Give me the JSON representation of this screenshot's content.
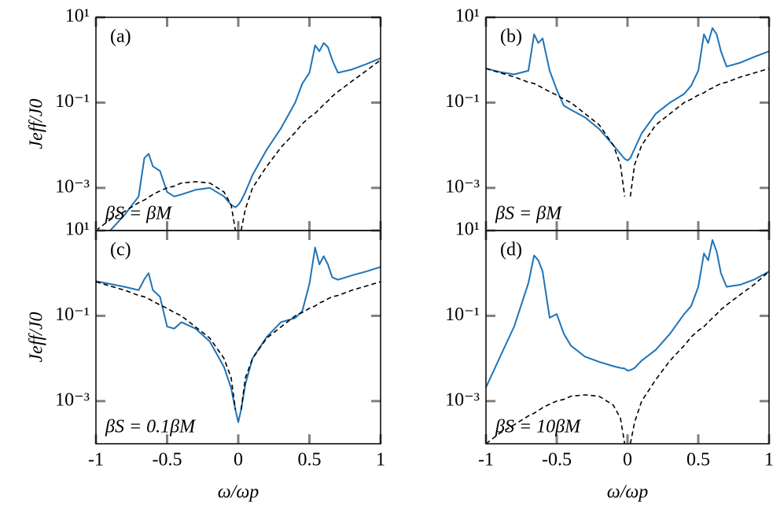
{
  "chart_data": [
    {
      "type": "line",
      "panel": "(a)",
      "annotation": "βS = βM",
      "ylabel": "Jeff/J0",
      "yscale": "log",
      "xlim": [
        -1,
        1
      ],
      "xticks": [
        -1,
        -0.5,
        0,
        0.5,
        1
      ],
      "ylim": [
        0.0001,
        10
      ],
      "yticks": [
        {
          "value": 10,
          "label": "10¹"
        },
        {
          "value": 0.1,
          "label": "10⁻¹"
        },
        {
          "value": 0.001,
          "label": "10⁻³"
        }
      ],
      "x": [
        -1,
        -0.9,
        -0.8,
        -0.7,
        -0.66,
        -0.63,
        -0.6,
        -0.55,
        -0.5,
        -0.45,
        -0.4,
        -0.3,
        -0.2,
        -0.1,
        -0.05,
        -0.02,
        0,
        0.02,
        0.05,
        0.1,
        0.2,
        0.3,
        0.4,
        0.45,
        0.5,
        0.54,
        0.57,
        0.6,
        0.63,
        0.66,
        0.7,
        0.8,
        0.9,
        1
      ],
      "series": [
        {
          "color": "#1f74b7",
          "dashed": false,
          "values": [
            null,
            0.0001,
            0.00023,
            0.00063,
            0.005,
            0.0063,
            0.0032,
            0.0025,
            0.0008,
            0.00063,
            0.0007,
            0.0009,
            0.001,
            0.00063,
            0.0004,
            0.00035,
            0.0004,
            0.0005,
            0.0008,
            0.002,
            0.0079,
            0.025,
            0.1,
            0.28,
            0.5,
            2.2,
            1.6,
            2.5,
            2,
            1,
            0.5,
            0.6,
            0.8,
            1.1
          ]
        },
        {
          "color": "#000000",
          "dashed": true,
          "values": [
            0.0001,
            0.00018,
            0.00028,
            0.00045,
            0.00052,
            0.0006,
            0.0007,
            0.00085,
            0.001,
            0.0011,
            0.0013,
            0.0014,
            0.0013,
            0.0008,
            0.0004,
            0.0001,
            null,
            0.0001,
            0.00032,
            0.001,
            0.0032,
            0.0089,
            0.02,
            0.032,
            0.045,
            0.056,
            0.071,
            0.089,
            0.11,
            0.14,
            0.18,
            0.32,
            0.56,
            1
          ]
        }
      ]
    },
    {
      "type": "line",
      "panel": "(b)",
      "annotation": "βS = βM",
      "yscale": "log",
      "xlim": [
        -1,
        1
      ],
      "xticks": [
        -1,
        -0.5,
        0,
        0.5,
        1
      ],
      "ylim": [
        0.0001,
        10
      ],
      "yticks": [
        {
          "value": 10,
          "label": "10¹"
        },
        {
          "value": 0.1,
          "label": "10⁻¹"
        },
        {
          "value": 0.001,
          "label": "10⁻³"
        }
      ],
      "x": [
        -1,
        -0.9,
        -0.8,
        -0.7,
        -0.66,
        -0.63,
        -0.6,
        -0.55,
        -0.5,
        -0.45,
        -0.4,
        -0.3,
        -0.2,
        -0.1,
        -0.05,
        -0.02,
        0,
        0.02,
        0.05,
        0.1,
        0.2,
        0.3,
        0.4,
        0.45,
        0.5,
        0.54,
        0.57,
        0.6,
        0.63,
        0.66,
        0.7,
        0.8,
        0.9,
        1
      ],
      "series": [
        {
          "color": "#1f74b7",
          "dashed": false,
          "values": [
            0.63,
            0.52,
            0.46,
            0.56,
            4,
            2.5,
            3.2,
            0.56,
            0.2,
            0.085,
            0.068,
            0.045,
            0.024,
            0.01,
            0.0063,
            0.0048,
            0.0044,
            0.005,
            0.0083,
            0.019,
            0.055,
            0.1,
            0.16,
            0.25,
            0.56,
            4,
            2.5,
            5.6,
            4,
            1.6,
            0.7,
            0.87,
            1.2,
            1.6
          ]
        },
        {
          "color": "#000000",
          "dashed": true,
          "values": [
            0.63,
            0.5,
            0.4,
            0.3,
            0.28,
            0.25,
            0.22,
            0.18,
            0.15,
            0.12,
            0.1,
            0.055,
            0.03,
            0.01,
            0.0035,
            0.00063,
            null,
            0.00063,
            0.0035,
            0.01,
            0.03,
            0.055,
            0.1,
            0.12,
            0.15,
            0.17,
            0.2,
            0.22,
            0.25,
            0.28,
            0.3,
            0.4,
            0.5,
            0.63
          ]
        }
      ]
    },
    {
      "type": "line",
      "panel": "(c)",
      "annotation": "βS = 0.1βM",
      "ylabel": "Jeff/J0",
      "xlabel": "ω/ωp",
      "yscale": "log",
      "xlim": [
        -1,
        1
      ],
      "xticks": [
        -1,
        -0.5,
        0,
        0.5,
        1
      ],
      "ylim": [
        0.0001,
        10
      ],
      "yticks": [
        {
          "value": 10,
          "label": "10¹"
        },
        {
          "value": 0.1,
          "label": "10⁻¹"
        },
        {
          "value": 0.001,
          "label": "10⁻³"
        }
      ],
      "x": [
        -1,
        -0.9,
        -0.8,
        -0.7,
        -0.66,
        -0.63,
        -0.6,
        -0.55,
        -0.5,
        -0.45,
        -0.4,
        -0.3,
        -0.2,
        -0.1,
        -0.05,
        -0.02,
        0,
        0.02,
        0.05,
        0.1,
        0.2,
        0.3,
        0.4,
        0.45,
        0.5,
        0.54,
        0.57,
        0.6,
        0.63,
        0.66,
        0.7,
        0.8,
        0.9,
        1
      ],
      "series": [
        {
          "color": "#1f74b7",
          "dashed": false,
          "values": [
            0.65,
            0.56,
            0.48,
            0.4,
            0.72,
            1,
            0.4,
            0.28,
            0.056,
            0.05,
            0.071,
            0.05,
            0.025,
            0.0063,
            0.002,
            0.00063,
            0.00032,
            0.00063,
            0.0025,
            0.01,
            0.032,
            0.071,
            0.089,
            0.13,
            0.56,
            4,
            1.6,
            2.5,
            1.6,
            0.8,
            0.7,
            0.89,
            1.1,
            1.4
          ]
        },
        {
          "color": "#000000",
          "dashed": true,
          "values": [
            0.63,
            0.5,
            0.4,
            0.3,
            0.28,
            0.25,
            0.22,
            0.18,
            0.15,
            0.12,
            0.1,
            0.055,
            0.03,
            0.01,
            0.0035,
            0.00063,
            null,
            0.00063,
            0.0035,
            0.01,
            0.03,
            0.055,
            0.1,
            0.12,
            0.15,
            0.17,
            0.2,
            0.22,
            0.25,
            0.28,
            0.3,
            0.4,
            0.5,
            0.63
          ]
        }
      ]
    },
    {
      "type": "line",
      "panel": "(d)",
      "annotation": "βS = 10βM",
      "xlabel": "ω/ωp",
      "yscale": "log",
      "xlim": [
        -1,
        1
      ],
      "xticks": [
        -1,
        -0.5,
        0,
        0.5,
        1
      ],
      "ylim": [
        0.0001,
        10
      ],
      "yticks": [
        {
          "value": 10,
          "label": "10¹"
        },
        {
          "value": 0.1,
          "label": "10⁻¹"
        },
        {
          "value": 0.001,
          "label": "10⁻³"
        }
      ],
      "x": [
        -1,
        -0.9,
        -0.8,
        -0.7,
        -0.66,
        -0.63,
        -0.6,
        -0.55,
        -0.5,
        -0.45,
        -0.4,
        -0.3,
        -0.2,
        -0.1,
        -0.05,
        -0.02,
        0,
        0.02,
        0.05,
        0.1,
        0.2,
        0.3,
        0.4,
        0.45,
        0.5,
        0.54,
        0.57,
        0.6,
        0.63,
        0.66,
        0.7,
        0.8,
        0.9,
        1
      ],
      "series": [
        {
          "color": "#1f74b7",
          "dashed": false,
          "values": [
            0.0021,
            0.011,
            0.057,
            0.59,
            2.6,
            2,
            1.1,
            0.09,
            0.11,
            0.038,
            0.02,
            0.011,
            0.0083,
            0.0066,
            0.006,
            0.0058,
            0.0052,
            0.0053,
            0.006,
            0.0089,
            0.016,
            0.038,
            0.11,
            0.17,
            0.48,
            2.9,
            2,
            6,
            3.2,
            1,
            0.48,
            0.54,
            0.72,
            1.1
          ]
        },
        {
          "color": "#000000",
          "dashed": true,
          "values": [
            0.0001,
            0.00018,
            0.00028,
            0.00045,
            0.00052,
            0.0006,
            0.0007,
            0.00085,
            0.001,
            0.0011,
            0.0013,
            0.0014,
            0.0013,
            0.0008,
            0.0004,
            0.0001,
            null,
            0.0001,
            0.00032,
            0.001,
            0.0032,
            0.0089,
            0.02,
            0.032,
            0.045,
            0.056,
            0.071,
            0.089,
            0.11,
            0.14,
            0.18,
            0.32,
            0.56,
            1.1
          ]
        }
      ]
    }
  ]
}
